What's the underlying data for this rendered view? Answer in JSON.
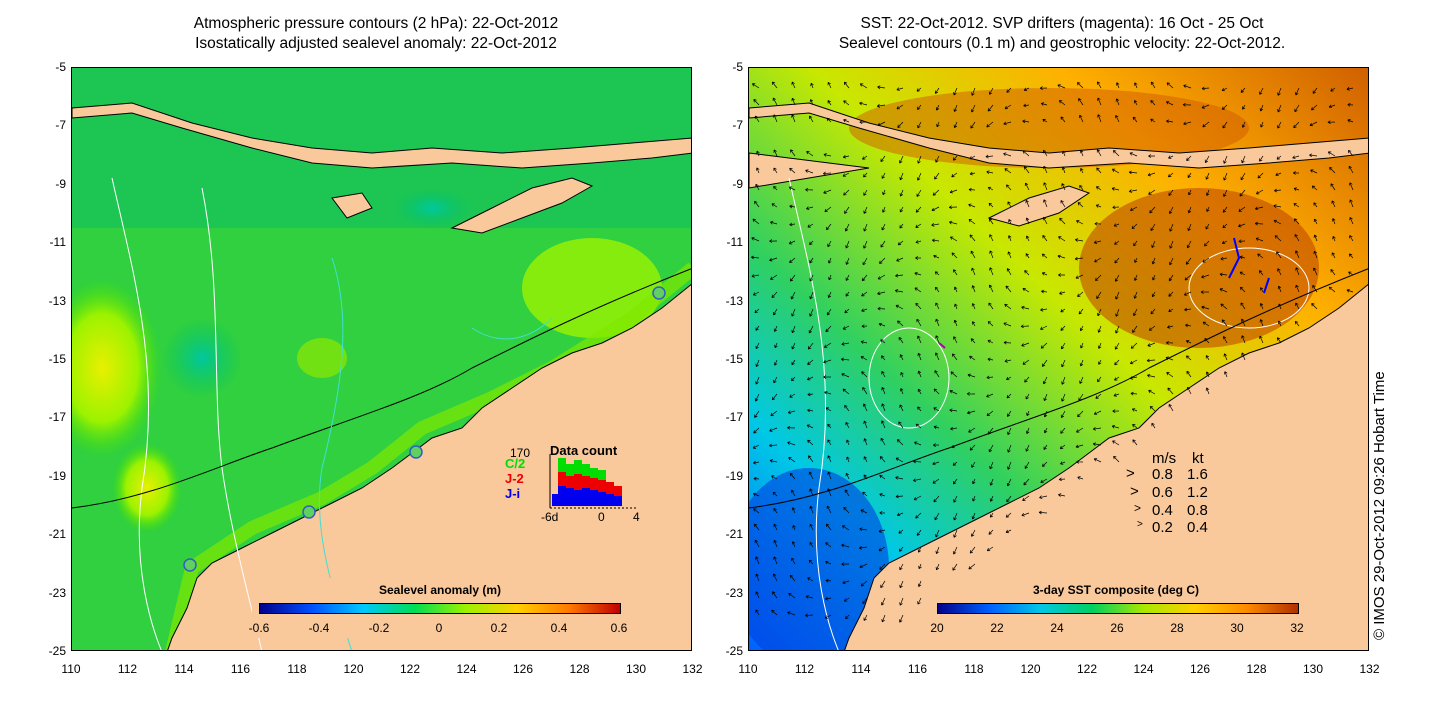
{
  "left_panel": {
    "title_line1": "Atmospheric pressure contours (2 hPa): 22-Oct-2012",
    "title_line2": "Isostatically adjusted sealevel anomaly: 22-Oct-2012",
    "colorbar_title": "Sealevel anomaly (m)",
    "colorbar_ticks": [
      "-0.6",
      "-0.4",
      "-0.2",
      "0",
      "0.2",
      "0.4",
      "0.6"
    ],
    "data_count": {
      "title": "Data count",
      "max_label": "170",
      "series_labels": [
        "C/2",
        "J-2",
        "J-i"
      ],
      "series_colors": [
        "#00dd00",
        "#ee0000",
        "#0000ee"
      ],
      "axis_labels": [
        "-6d",
        "0",
        "4"
      ]
    }
  },
  "right_panel": {
    "title_line1": "SST: 22-Oct-2012. SVP drifters (magenta): 16 Oct - 25 Oct",
    "title_line2": "Sealevel contours (0.1 m) and geostrophic velocity: 22-Oct-2012.",
    "colorbar_title": "3-day SST composite (deg C)",
    "colorbar_ticks": [
      "20",
      "22",
      "24",
      "26",
      "28",
      "30",
      "32"
    ],
    "velocity_legend": {
      "header_ms": "m/s",
      "header_kt": "kt",
      "rows": [
        {
          "ms": "0.8",
          "kt": "1.6"
        },
        {
          "ms": "0.6",
          "kt": "1.2"
        },
        {
          "ms": "0.4",
          "kt": "0.8"
        },
        {
          "ms": "0.2",
          "kt": "0.4"
        }
      ]
    }
  },
  "axes": {
    "y_ticks": [
      "-5",
      "-7",
      "-9",
      "-11",
      "-13",
      "-15",
      "-17",
      "-19",
      "-21",
      "-23",
      "-25"
    ],
    "x_ticks": [
      "110",
      "112",
      "114",
      "116",
      "118",
      "120",
      "122",
      "124",
      "126",
      "128",
      "130",
      "132"
    ]
  },
  "credit": "© IMOS 29-Oct-2012 09:26 Hobart Time",
  "colors": {
    "land": "#f9c89b",
    "sla_scale": [
      "#00008b",
      "#0050ff",
      "#00c8ff",
      "#00dd55",
      "#9cf200",
      "#ffd000",
      "#ff7a00",
      "#c00000"
    ],
    "sst_scale": [
      "#00008b",
      "#0060ff",
      "#00c8e6",
      "#00d060",
      "#a8e800",
      "#ffd000",
      "#ff8a00",
      "#b03000"
    ]
  }
}
